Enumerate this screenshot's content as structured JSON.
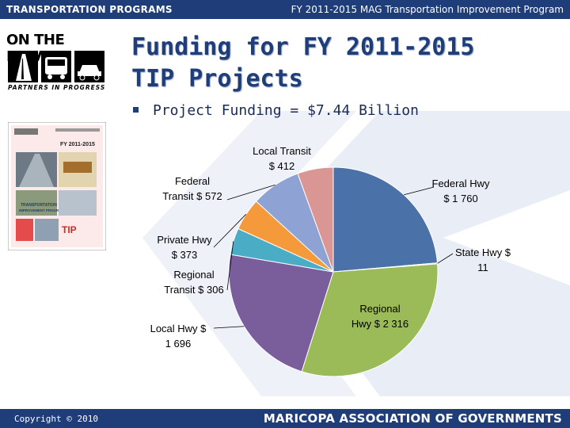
{
  "header": {
    "left": "TRANSPORTATION PROGRAMS",
    "right": "FY 2011-2015 MAG Transportation Improvement Program"
  },
  "logo": {
    "title": "ON THE MOVE",
    "subtitle": "PARTNERS IN PROGRESS"
  },
  "title_line1": "Funding for FY 2011-2015",
  "title_line2": "TIP Projects",
  "bullet": "Project Funding = $7.44 Billion",
  "cover": {
    "top": "FY 2011-2015",
    "label1": "TRANSPORTATION",
    "label2": "IMPROVEMENT PROGRAM",
    "tip": "TIP"
  },
  "footer": {
    "copyright": "Copyright © 2010",
    "org": "MARICOPA ASSOCIATION OF GOVERNMENTS"
  },
  "colors": {
    "header_bar": "#1f3d78",
    "federal_hwy": "#4a72a8",
    "state_hwy": "#c0504d",
    "regional_hwy": "#9bbb59",
    "local_hwy": "#7a5e9c",
    "regional_transit": "#4aacc5",
    "private_hwy": "#f49a3b",
    "federal_transit": "#8fa2d4",
    "local_transit": "#d99694"
  },
  "chart_data": {
    "type": "pie",
    "units": "$ Millions",
    "slices": [
      {
        "name": "Federal Hwy",
        "value": 1760,
        "label": [
          "Federal Hwy",
          "$ 1 760"
        ]
      },
      {
        "name": "State Hwy",
        "value": 11,
        "label": [
          "State Hwy $",
          "11"
        ]
      },
      {
        "name": "Regional Hwy",
        "value": 2316,
        "label": [
          "Regional",
          "Hwy $ 2 316"
        ]
      },
      {
        "name": "Local Hwy",
        "value": 1696,
        "label": [
          "Local Hwy $",
          "1 696"
        ]
      },
      {
        "name": "Regional Transit",
        "value": 306,
        "label": [
          "Regional",
          "Transit $ 306"
        ]
      },
      {
        "name": "Private Hwy",
        "value": 373,
        "label": [
          "Private Hwy",
          "$ 373"
        ]
      },
      {
        "name": "Federal Transit",
        "value": 572,
        "label": [
          "Federal",
          "Transit $ 572"
        ]
      },
      {
        "name": "Local Transit",
        "value": 412,
        "label": [
          "Local Transit",
          "$ 412"
        ]
      }
    ]
  }
}
